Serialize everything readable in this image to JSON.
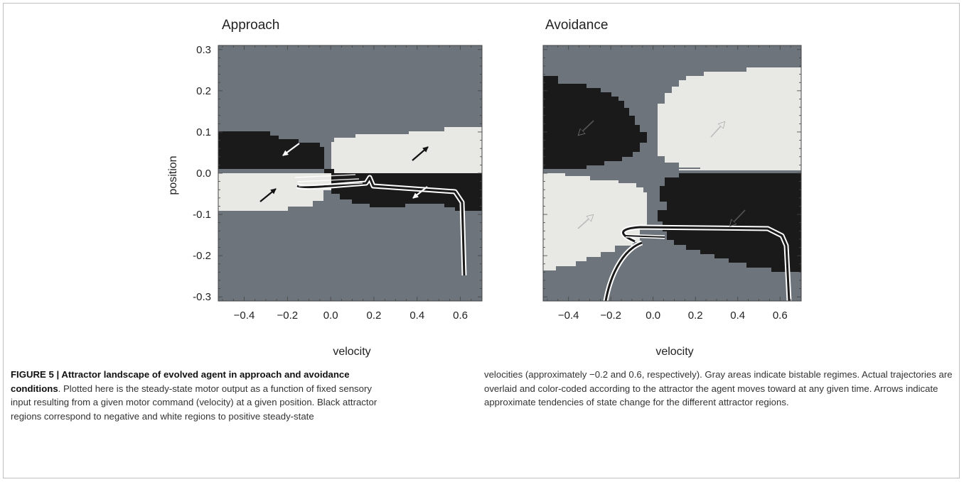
{
  "figure": {
    "panels": [
      {
        "title": "Approach",
        "xlabel": "velocity",
        "ylabel": "position"
      },
      {
        "title": "Avoidance",
        "xlabel": "velocity",
        "ylabel": ""
      }
    ],
    "x_ticks": [
      "−0.4",
      "−0.2",
      "0.0",
      "0.2",
      "0.4",
      "0.6"
    ],
    "y_ticks": [
      "0.3",
      "0.2",
      "0.1",
      "0.0",
      "-0.1",
      "-0.2",
      "-0.3"
    ],
    "colors": {
      "negative_region": "#1a1a1a",
      "positive_region": "#e8e8e4",
      "bistable": "#6d747b",
      "trajectory_outline": "#ffffff"
    }
  },
  "caption": {
    "label": "FIGURE 5 | Attractor landscape of evolved agent in approach and avoidance conditions",
    "body_left": ". Plotted here is the steady-state motor output as a function of fixed sensory input resulting from a given motor command (velocity) at a given position. Black attractor regions correspond to negative and white regions to positive steady-state",
    "body_right": "velocities (approximately −0.2 and 0.6, respectively). Gray areas indicate bistable regimes. Actual trajectories are overlaid and color-coded according to the attractor the agent moves toward at any given time. Arrows indicate approximate tendencies of state change for the different attractor regions."
  },
  "chart_data": [
    {
      "type": "heatmap",
      "title": "Approach",
      "xlabel": "velocity",
      "ylabel": "position",
      "xlim": [
        -0.52,
        0.7
      ],
      "ylim": [
        -0.31,
        0.31
      ],
      "regions": [
        {
          "value": "negative",
          "x": [
            -0.52,
            -0.0
          ],
          "y": [
            0.0,
            0.1
          ]
        },
        {
          "value": "positive",
          "x": [
            0.03,
            0.7
          ],
          "y": [
            0.0,
            0.11
          ]
        },
        {
          "value": "positive",
          "x": [
            -0.52,
            -0.03
          ],
          "y": [
            -0.09,
            0.0
          ]
        },
        {
          "value": "negative",
          "x": [
            0.03,
            0.7
          ],
          "y": [
            -0.08,
            0.0
          ]
        }
      ],
      "arrows": [
        {
          "region": "negative",
          "from": [
            -0.26,
            0.07
          ],
          "to": [
            -0.34,
            0.03
          ]
        },
        {
          "region": "positive",
          "from": [
            0.41,
            0.04
          ],
          "to": [
            0.49,
            0.08
          ]
        },
        {
          "region": "positive",
          "from": [
            -0.34,
            -0.06
          ],
          "to": [
            -0.24,
            -0.02
          ]
        },
        {
          "region": "negative",
          "from": [
            0.52,
            -0.02
          ],
          "to": [
            0.44,
            -0.06
          ]
        }
      ],
      "trajectory": {
        "x": [
          -0.13,
          0.0,
          0.15,
          0.22,
          0.6,
          0.64,
          0.64
        ],
        "y": [
          -0.03,
          -0.005,
          -0.005,
          -0.01,
          -0.02,
          -0.06,
          -0.24
        ]
      }
    },
    {
      "type": "heatmap",
      "title": "Avoidance",
      "xlabel": "velocity",
      "ylabel": "",
      "xlim": [
        -0.52,
        0.7
      ],
      "ylim": [
        -0.31,
        0.31
      ],
      "regions": [
        {
          "value": "negative",
          "x": [
            -0.52,
            -0.08
          ],
          "y": [
            0.0,
            0.23
          ]
        },
        {
          "value": "positive",
          "x": [
            0.05,
            0.7
          ],
          "y": [
            0.0,
            0.25
          ]
        },
        {
          "value": "positive",
          "x": [
            -0.52,
            -0.08
          ],
          "y": [
            -0.23,
            0.0
          ]
        },
        {
          "value": "negative",
          "x": [
            0.05,
            0.7
          ],
          "y": [
            -0.23,
            0.0
          ]
        }
      ],
      "arrows": [
        {
          "region": "negative",
          "from": [
            -0.34,
            0.18
          ],
          "to": [
            -0.42,
            0.11
          ]
        },
        {
          "region": "positive",
          "from": [
            0.41,
            0.12
          ],
          "to": [
            0.49,
            0.19
          ]
        },
        {
          "region": "positive",
          "from": [
            -0.42,
            -0.16
          ],
          "to": [
            -0.34,
            -0.09
          ]
        },
        {
          "region": "negative",
          "from": [
            0.42,
            -0.08
          ],
          "to": [
            0.34,
            -0.15
          ]
        }
      ],
      "trajectory": {
        "x": [
          -0.12,
          0.0,
          0.6,
          0.65,
          0.65
        ],
        "y": [
          -0.18,
          -0.125,
          -0.13,
          -0.19,
          -0.31
        ]
      },
      "trajectory2": {
        "x": [
          -0.22,
          -0.2,
          -0.14,
          -0.06
        ],
        "y": [
          -0.31,
          -0.25,
          -0.2,
          -0.17
        ]
      }
    }
  ]
}
